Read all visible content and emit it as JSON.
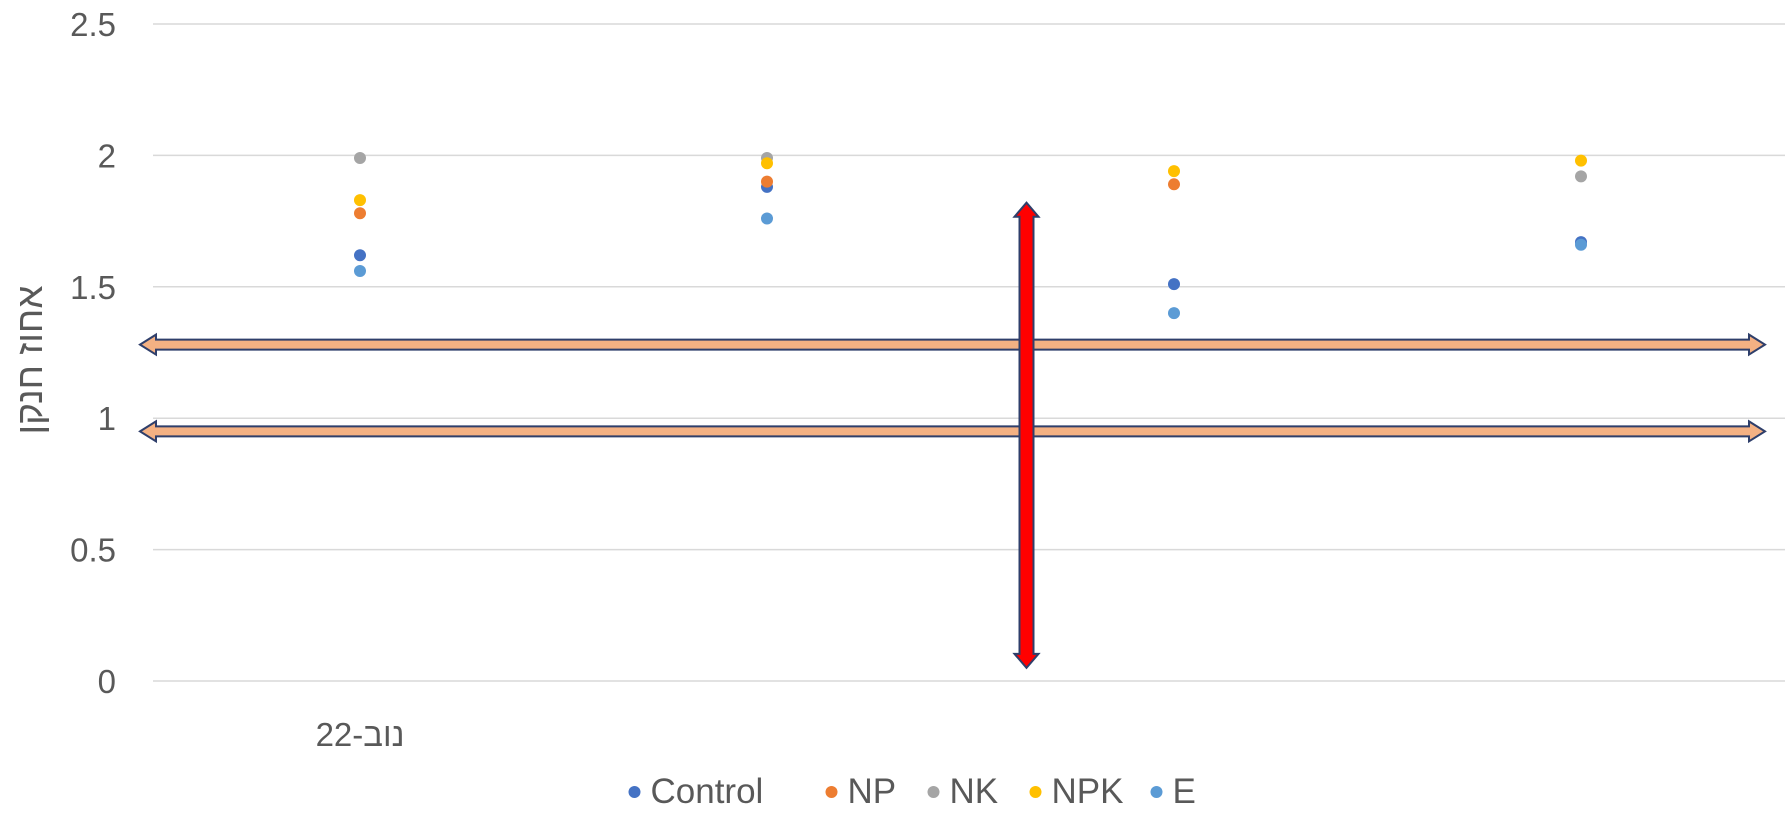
{
  "chart_data": {
    "type": "scatter",
    "title": "",
    "xlabel": "",
    "ylabel": "אחוז חנקן",
    "ylim": [
      0,
      2.5
    ],
    "yticks": [
      0,
      0.5,
      1,
      1.5,
      2,
      2.5
    ],
    "ytick_labels": [
      "0",
      "0.5",
      "1",
      "1.5",
      "2",
      "2.5"
    ],
    "categories": [
      "נוב-22",
      "",
      "",
      ""
    ],
    "grid": true,
    "legend_position": "bottom",
    "series": [
      {
        "name": "Control",
        "color": "#4472C4",
        "values": [
          1.62,
          1.88,
          1.51,
          1.67
        ]
      },
      {
        "name": "NP",
        "color": "#ED7D31",
        "values": [
          1.78,
          1.9,
          1.89,
          null
        ]
      },
      {
        "name": "NK",
        "color": "#A5A5A5",
        "values": [
          1.99,
          1.99,
          null,
          1.92
        ]
      },
      {
        "name": "NPK",
        "color": "#FFC000",
        "values": [
          1.83,
          1.97,
          1.94,
          1.98
        ]
      },
      {
        "name": "E",
        "color": "#5B9BD5",
        "values": [
          1.56,
          1.76,
          1.4,
          1.66
        ]
      }
    ],
    "overlay_arrows": [
      {
        "orientation": "horizontal",
        "y_value": 1.28,
        "fill": "#F4B183",
        "stroke": "#2F3F6B"
      },
      {
        "orientation": "horizontal",
        "y_value": 0.95,
        "fill": "#F4B183",
        "stroke": "#2F3F6B"
      },
      {
        "orientation": "vertical",
        "category_gap": 2,
        "y_from": 1.82,
        "y_to": 0.05,
        "fill": "#FF0000",
        "stroke": "#2F3F6B"
      }
    ]
  }
}
